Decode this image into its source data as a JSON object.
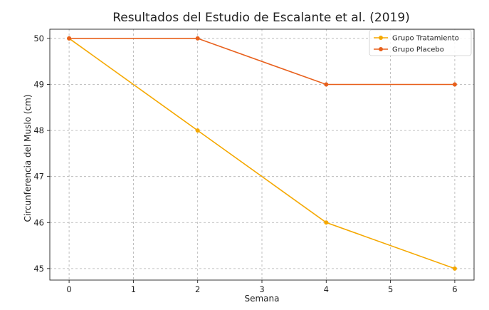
{
  "chart_data": {
    "type": "line",
    "title": "Resultados del Estudio de Escalante et al. (2019)",
    "xlabel": "Semana",
    "ylabel": "Circunferencia del Muslo (cm)",
    "xlim": [
      -0.3,
      6.3
    ],
    "ylim": [
      44.75,
      50.2
    ],
    "xticks": [
      0,
      1,
      2,
      3,
      4,
      5,
      6
    ],
    "yticks": [
      45,
      46,
      47,
      48,
      49,
      50
    ],
    "grid": true,
    "legend_position": "top-right",
    "x": [
      0,
      2,
      4,
      6
    ],
    "series": [
      {
        "name": "Grupo Tratamiento",
        "values": [
          50,
          48,
          46,
          45
        ],
        "color": "#F5A800"
      },
      {
        "name": "Grupo Placebo",
        "values": [
          50,
          50,
          49,
          49
        ],
        "color": "#E8601C"
      }
    ]
  }
}
